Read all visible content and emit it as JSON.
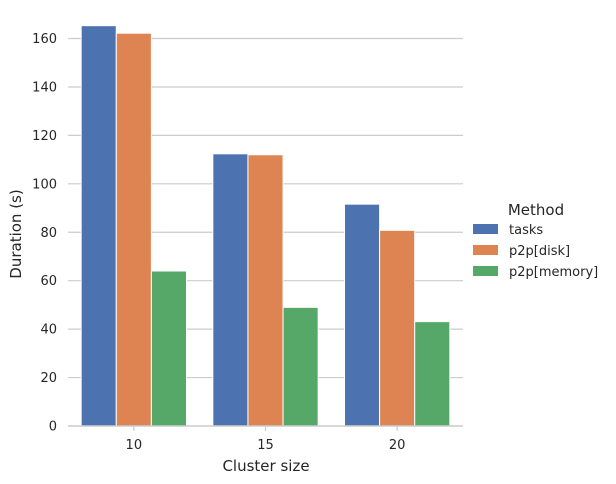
{
  "chart_data": {
    "type": "bar",
    "title": "",
    "xlabel": "Cluster size",
    "ylabel": "Duration (s)",
    "categories": [
      "10",
      "15",
      "20"
    ],
    "series": [
      {
        "name": "tasks",
        "values": [
          165.3,
          112.4,
          91.6
        ],
        "color": "#4c72b0"
      },
      {
        "name": "p2p[disk]",
        "values": [
          162.2,
          112.0,
          80.8
        ],
        "color": "#dd8452"
      },
      {
        "name": "p2p[memory]",
        "values": [
          64.0,
          49.0,
          43.1
        ],
        "color": "#55a868"
      }
    ],
    "ylim": [
      0,
      166
    ],
    "yticks": [
      "0",
      "20",
      "40",
      "60",
      "80",
      "100",
      "120",
      "140",
      "160"
    ],
    "grid": "horizontal",
    "legend": {
      "title": "Method",
      "placement": "right"
    },
    "grid_color": "#cccccc",
    "axis_color": "#cccccc",
    "text_color": "#262626"
  }
}
